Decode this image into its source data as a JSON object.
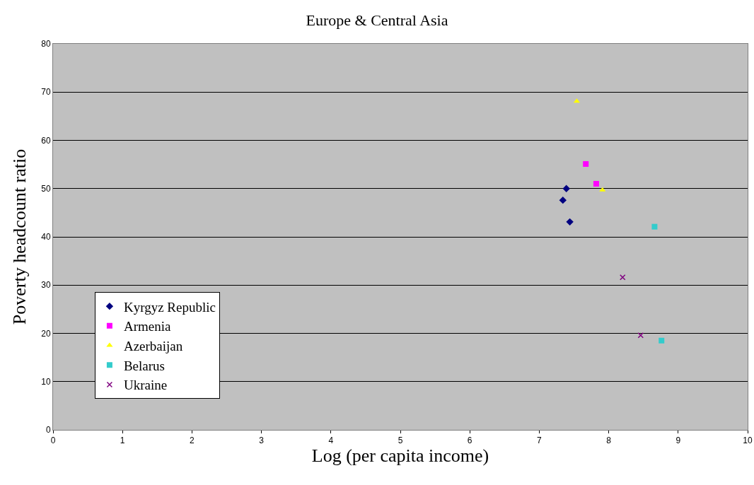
{
  "chart_data": {
    "type": "scatter",
    "title": "Europe & Central Asia",
    "xlabel": "Log (per capita income)",
    "ylabel": "Poverty headcount ratio",
    "xlim": [
      0,
      10
    ],
    "xticks": [
      0,
      1,
      2,
      3,
      4,
      5,
      6,
      7,
      8,
      9,
      10
    ],
    "ylim": [
      0,
      80
    ],
    "yticks": [
      0,
      10,
      20,
      30,
      40,
      50,
      60,
      70,
      80
    ],
    "grid": "y",
    "legend": "bottom left",
    "series": [
      {
        "name": "Kyrgyz Republic",
        "color": "#000080",
        "marker": "diamond",
        "x": [
          7.39,
          7.34,
          7.44
        ],
        "values": [
          50.0,
          47.6,
          43.1
        ]
      },
      {
        "name": "Armenia",
        "color": "#ff00ff",
        "marker": "square",
        "x": [
          7.67,
          7.82
        ],
        "values": [
          55.1,
          51.0
        ]
      },
      {
        "name": "Azerbaijan",
        "color": "#ffff00",
        "marker": "triangle",
        "x": [
          7.54,
          7.91
        ],
        "values": [
          68.1,
          49.7
        ]
      },
      {
        "name": "Belarus",
        "color": "#33cccc",
        "marker": "square",
        "x": [
          8.66,
          8.76
        ],
        "values": [
          42.1,
          18.5
        ]
      },
      {
        "name": "Ukraine",
        "color": "#800080",
        "marker": "cross",
        "x": [
          8.2,
          8.46
        ],
        "values": [
          31.6,
          19.6
        ]
      }
    ]
  }
}
